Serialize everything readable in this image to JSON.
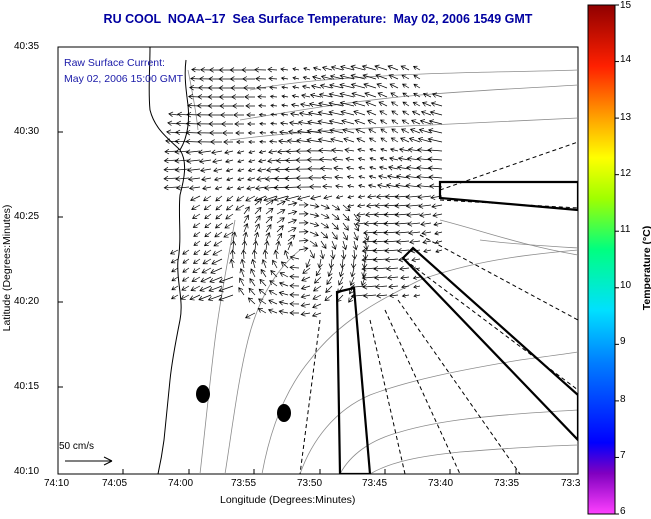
{
  "title": "RU COOL  NOAA–17  Sea Surface Temperature:  May 02, 2006 1549 GMT",
  "annotation": {
    "line1": "Raw Surface Current:",
    "line2": "May 02, 2006 15:00 GMT"
  },
  "scale_arrow_label": "50 cm/s",
  "axes": {
    "xlabel": "Longitude (Degrees:Minutes)",
    "ylabel": "Latitude (Degrees:Minutes)",
    "x_ticks": [
      "74:10",
      "74:05",
      "74:00",
      "73:55",
      "73:50",
      "73:45",
      "73:40",
      "73:35",
      "73:3"
    ],
    "y_ticks": [
      "40:35",
      "40:30",
      "40:25",
      "40:20",
      "40:15",
      "40:10"
    ]
  },
  "colorbar": {
    "label": "Temperature (°C)",
    "min": 6,
    "max": 15,
    "ticks": [
      "15",
      "14",
      "13",
      "12",
      "11",
      "10",
      "9",
      "8",
      "7",
      "6"
    ]
  },
  "colors": {
    "title": "#0000a0",
    "annotation": "#1a1aa8",
    "coastline": "#000000",
    "bathymetry": "#8c8c8c"
  }
}
